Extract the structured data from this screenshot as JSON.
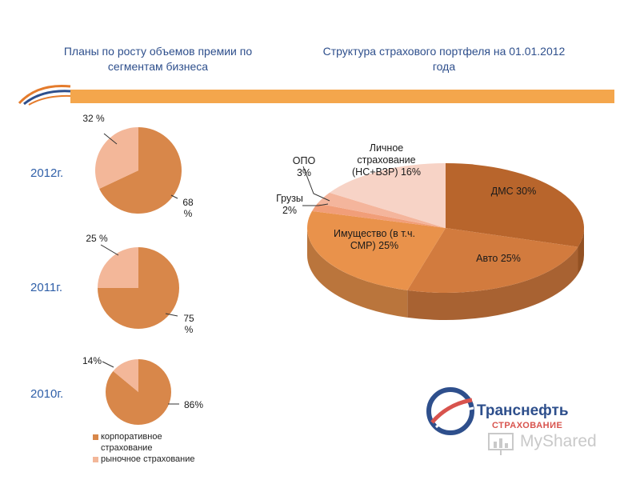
{
  "titles": {
    "left": "Планы по росту объемов премии по сегментам бизнеса",
    "right": "Структура страхового портфеля на 01.01.2012 года"
  },
  "years": {
    "y2012": "2012г.",
    "y2011": "2011г.",
    "y2010": "2010г."
  },
  "labels": {
    "p2012_small": "32 %",
    "p2012_big": "68 %",
    "p2011_small": "25 %",
    "p2011_big": "75 %",
    "p2010_small": "14%",
    "p2010_big": "86%",
    "dms": "ДМС 30%",
    "auto": "Авто 25%",
    "property": "Имущество (в т.ч. СМР) 25%",
    "cargo": "Грузы 2%",
    "opo": "ОПО 3%",
    "personal": "Личное страхование (НС+ВЗР) 16%"
  },
  "legend": {
    "corporate": "корпоративное страхование",
    "market": "рыночное страхование"
  },
  "brand": {
    "name": "Транснефть",
    "sub": "СТРАХОВАНИЕ",
    "watermark": "MyShared"
  },
  "colors": {
    "corporate": "#d8874a",
    "market": "#f3b799",
    "dms": "#b8652c",
    "auto": "#d27b3e",
    "property": "#e9924b",
    "cargo": "#f19e79",
    "opo": "#f4b59c",
    "personal": "#f7d3c6",
    "accent_bar": "#f4a64c",
    "title_blue": "#2e4f8c"
  },
  "chart_data": [
    {
      "type": "pie",
      "title": "2012г.",
      "categories": [
        "корпоративное страхование",
        "рыночное страхование"
      ],
      "values": [
        68,
        32
      ]
    },
    {
      "type": "pie",
      "title": "2011г.",
      "categories": [
        "корпоративное страхование",
        "рыночное страхование"
      ],
      "values": [
        75,
        25
      ]
    },
    {
      "type": "pie",
      "title": "2010г.",
      "categories": [
        "корпоративное страхование",
        "рыночное страхование"
      ],
      "values": [
        86,
        14
      ]
    },
    {
      "type": "pie",
      "title": "Структура страхового портфеля на 01.01.2012 года",
      "categories": [
        "ДМС",
        "Авто",
        "Имущество (в т.ч. СМР)",
        "Грузы",
        "ОПО",
        "Личное страхование (НС+ВЗР)"
      ],
      "values": [
        30,
        25,
        25,
        2,
        3,
        16
      ]
    }
  ]
}
